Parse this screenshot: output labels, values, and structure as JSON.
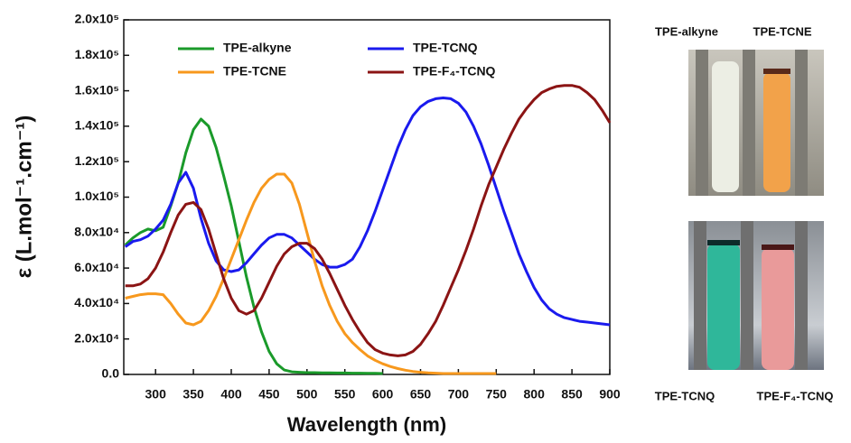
{
  "chart_data": {
    "type": "line",
    "x_label": "Wavelength (nm)",
    "y_label": "ε (L.mol⁻¹.cm⁻¹)",
    "x": [
      260,
      270,
      280,
      290,
      300,
      310,
      320,
      330,
      340,
      350,
      360,
      370,
      380,
      390,
      400,
      410,
      420,
      430,
      440,
      450,
      460,
      470,
      480,
      490,
      500,
      510,
      520,
      530,
      540,
      550,
      560,
      570,
      580,
      590,
      600,
      610,
      620,
      630,
      640,
      650,
      660,
      670,
      680,
      690,
      700,
      710,
      720,
      730,
      740,
      750,
      760,
      770,
      780,
      790,
      800,
      810,
      820,
      830,
      840,
      850,
      860,
      870,
      880,
      890,
      900
    ],
    "series": [
      {
        "name": "TPE-alkyne",
        "color": "#1a9a2a",
        "values": [
          73000,
          77000,
          80000,
          82000,
          81000,
          83000,
          95000,
          108000,
          125000,
          138000,
          144000,
          140000,
          128000,
          112000,
          95000,
          75000,
          55000,
          38000,
          24000,
          13000,
          6000,
          2500,
          1500,
          1200,
          1000,
          1000,
          900,
          900,
          800,
          800,
          700,
          700,
          600,
          600,
          500,
          null,
          null,
          null,
          null,
          null,
          null,
          null,
          null,
          null,
          null,
          null,
          null,
          null,
          null,
          null,
          null,
          null,
          null,
          null,
          null,
          null,
          null,
          null,
          null,
          null,
          null,
          null,
          null,
          null,
          null
        ]
      },
      {
        "name": "TPE-TCNQ",
        "color": "#1a1aee",
        "values": [
          72000,
          75000,
          76000,
          78000,
          82000,
          87000,
          96000,
          108000,
          114000,
          105000,
          88000,
          74000,
          64000,
          59000,
          58000,
          59000,
          63000,
          68000,
          73000,
          77000,
          79000,
          79000,
          77000,
          73000,
          69000,
          65000,
          62000,
          60500,
          60500,
          62000,
          65000,
          72000,
          81000,
          92000,
          104000,
          116000,
          128000,
          138000,
          146000,
          151000,
          154000,
          155500,
          156000,
          155500,
          153000,
          148000,
          140000,
          130000,
          118000,
          105000,
          92000,
          80000,
          68000,
          58000,
          49000,
          42000,
          37000,
          34000,
          32000,
          31000,
          30000,
          29500,
          29000,
          28500,
          28000
        ]
      },
      {
        "name": "TPE-TCNE",
        "color": "#f7981d",
        "values": [
          43000,
          44000,
          45000,
          45500,
          45500,
          45000,
          40000,
          34000,
          29000,
          28000,
          30000,
          36000,
          44000,
          54000,
          65000,
          76000,
          87000,
          97000,
          105000,
          110000,
          113000,
          113000,
          108000,
          96000,
          80000,
          64000,
          50000,
          39000,
          30000,
          23000,
          18000,
          14000,
          10500,
          8000,
          6000,
          4500,
          3300,
          2400,
          1700,
          1200,
          900,
          700,
          500,
          500,
          500,
          500,
          500,
          500,
          500,
          500,
          null,
          null,
          null,
          null,
          null,
          null,
          null,
          null,
          null,
          null,
          null,
          null,
          null,
          null,
          null
        ]
      },
      {
        "name": "TPE-F₄-TCNQ",
        "color": "#8b1414",
        "values": [
          50000,
          50000,
          51000,
          54000,
          60000,
          69000,
          80000,
          90000,
          96000,
          97000,
          93000,
          82000,
          68000,
          54000,
          43000,
          36000,
          34000,
          36000,
          43000,
          52000,
          61000,
          68000,
          72000,
          74000,
          74000,
          71000,
          65000,
          57000,
          48000,
          39000,
          31000,
          24000,
          18000,
          14000,
          12000,
          11000,
          10500,
          11000,
          13000,
          17000,
          23000,
          30000,
          39000,
          49000,
          59000,
          70000,
          82000,
          95000,
          107000,
          117000,
          127000,
          136000,
          144000,
          150000,
          155000,
          159000,
          161000,
          162500,
          163000,
          163000,
          162000,
          159000,
          155000,
          149000,
          142000
        ]
      }
    ],
    "xlim": [
      258,
      900
    ],
    "xticks": [
      300,
      350,
      400,
      450,
      500,
      550,
      600,
      650,
      700,
      750,
      800,
      850,
      900
    ],
    "ylim": [
      0,
      200000
    ],
    "yticks": [
      {
        "value": 0,
        "label": "0.0"
      },
      {
        "value": 20000,
        "label": "2.0x10⁴"
      },
      {
        "value": 40000,
        "label": "4.0x10⁴"
      },
      {
        "value": 60000,
        "label": "6.0x10⁴"
      },
      {
        "value": 80000,
        "label": "8.0x10⁴"
      },
      {
        "value": 100000,
        "label": "1.0x10⁵"
      },
      {
        "value": 120000,
        "label": "1.2x10⁵"
      },
      {
        "value": 140000,
        "label": "1.4x10⁵"
      },
      {
        "value": 160000,
        "label": "1.6x10⁵"
      },
      {
        "value": 180000,
        "label": "1.8x10⁵"
      },
      {
        "value": 200000,
        "label": "2.0x10⁵"
      }
    ],
    "grid": false,
    "legend": "top"
  },
  "photos": {
    "labels": [
      "TPE-alkyne",
      "TPE-TCNE",
      "TPE-TCNQ",
      "TPE-F₄-TCNQ"
    ]
  }
}
